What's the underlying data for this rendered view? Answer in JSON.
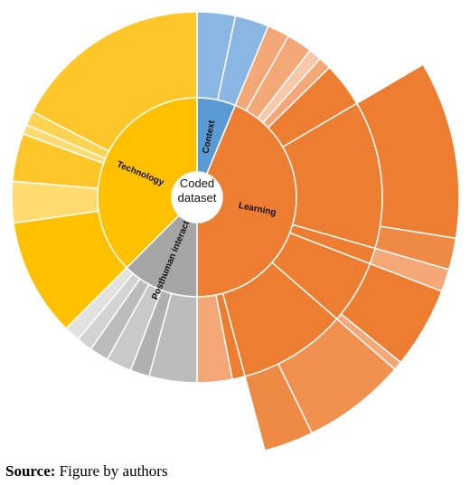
{
  "chart_data": {
    "type": "sunburst",
    "center_label": "Coded dataset",
    "nodes": [
      {
        "name": "Context",
        "value": 22.6,
        "color": "#5b9bd5",
        "children": [
          {
            "value": 12,
            "color": "#8ab6e4"
          },
          {
            "value": 10.6,
            "color": "#8ab6e4"
          }
        ]
      },
      {
        "name": "Learning",
        "value": 157.4,
        "color": "#ed7d31",
        "children": [
          {
            "value": 7,
            "color": "#f4a877"
          },
          {
            "value": 8,
            "color": "#f4a877"
          },
          {
            "value": 4,
            "color": "#f8c9a8"
          },
          {
            "value": 4,
            "color": "#f4a877"
          },
          {
            "value": 14,
            "color": "#ed7d31"
          },
          {
            "value": 46.4,
            "color": "#ed7d31",
            "children": [
              {
                "value": 39.4,
                "color": "#ed7d31"
              },
              {
                "value": 7,
                "color": "#ef8a45"
              }
            ]
          },
          {
            "value": 5,
            "color": "#ed7d31",
            "children": [
              {
                "value": 5,
                "color": "#f4a877"
              }
            ]
          },
          {
            "value": 20,
            "color": "#ed7d31",
            "children": [
              {
                "value": 18,
                "color": "#ed7d31"
              },
              {
                "value": 2,
                "color": "#f4a877"
              }
            ]
          },
          {
            "value": 34,
            "color": "#ed7d31",
            "children": [
              {
                "value": 23,
                "color": "#f0914f"
              },
              {
                "value": 11,
                "color": "#ef8a45"
              }
            ]
          },
          {
            "value": 4,
            "color": "#ed7d31"
          },
          {
            "value": 11,
            "color": "#f4a877"
          }
        ]
      },
      {
        "name": "Posthuman interaction",
        "value": 45,
        "color": "#a5a5a5",
        "children": [
          {
            "value": 15,
            "color": "#bcbcbc"
          },
          {
            "value": 6,
            "color": "#b0b0b0"
          },
          {
            "value": 8,
            "color": "#c9c9c9"
          },
          {
            "value": 6,
            "color": "#bcbcbc"
          },
          {
            "value": 5,
            "color": "#d3d3d3"
          },
          {
            "value": 5,
            "color": "#e2e2e2"
          }
        ]
      },
      {
        "name": "Technology",
        "value": 135,
        "color": "#ffc000",
        "children": [
          {
            "value": 37,
            "color": "#ffc000"
          },
          {
            "value": 13,
            "color": "#ffdb70"
          },
          {
            "value": 15,
            "color": "#ffc62a"
          },
          {
            "value": 3,
            "color": "#ffdb70"
          },
          {
            "value": 4.5,
            "color": "#ffd352"
          },
          {
            "value": 62.5,
            "color": "#ffc62a"
          }
        ]
      }
    ]
  },
  "source": {
    "label": "Source:",
    "text": "Figure by authors"
  }
}
